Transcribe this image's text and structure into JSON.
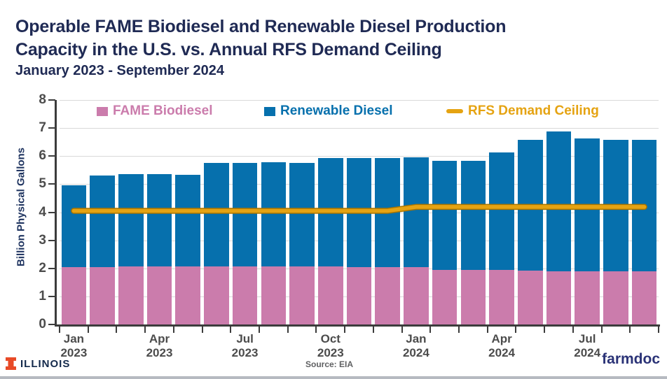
{
  "header": {
    "title_line1": "Operable FAME Biodiesel and Renewable Diesel Production",
    "title_line2": "Capacity in the U.S. vs. Annual RFS Demand Ceiling",
    "subtitle": "January 2023 - September 2024"
  },
  "chart_data": {
    "type": "bar",
    "stacked": true,
    "title": "Operable FAME Biodiesel and Renewable Diesel Production Capacity in the U.S. vs. Annual RFS Demand Ceiling",
    "subtitle": "January 2023 - September 2024",
    "ylabel": "Billion Physical Gallons",
    "xlabel": "",
    "ylim": [
      0,
      8
    ],
    "yticks": [
      0,
      1,
      2,
      3,
      4,
      5,
      6,
      7,
      8
    ],
    "grid": "horizontal",
    "legend_position": "top-inside",
    "categories": [
      "Jan 2023",
      "Feb 2023",
      "Mar 2023",
      "Apr 2023",
      "May 2023",
      "Jun 2023",
      "Jul 2023",
      "Aug 2023",
      "Sep 2023",
      "Oct 2023",
      "Nov 2023",
      "Dec 2023",
      "Jan 2024",
      "Feb 2024",
      "Mar 2024",
      "Apr 2024",
      "May 2024",
      "Jun 2024",
      "Jul 2024",
      "Aug 2024",
      "Sep 2024"
    ],
    "series": [
      {
        "name": "FAME Biodiesel",
        "type": "bar",
        "color": "#cb7cac",
        "values": [
          2.04,
          2.05,
          2.06,
          2.06,
          2.06,
          2.07,
          2.07,
          2.07,
          2.07,
          2.07,
          2.05,
          2.05,
          2.05,
          1.95,
          1.95,
          1.95,
          1.92,
          1.9,
          1.9,
          1.9,
          1.9
        ]
      },
      {
        "name": "Renewable Diesel",
        "type": "bar",
        "color": "#0670ad",
        "values": [
          2.93,
          3.26,
          3.31,
          3.31,
          3.27,
          3.7,
          3.7,
          3.71,
          3.69,
          3.87,
          3.88,
          3.88,
          3.9,
          3.89,
          3.88,
          4.17,
          4.67,
          4.99,
          4.72,
          4.69,
          4.67
        ]
      },
      {
        "name": "RFS Demand Ceiling",
        "type": "line",
        "color": "#e5a312",
        "values": [
          4.05,
          4.05,
          4.05,
          4.05,
          4.05,
          4.05,
          4.05,
          4.05,
          4.05,
          4.05,
          4.05,
          4.05,
          4.19,
          4.19,
          4.19,
          4.19,
          4.19,
          4.19,
          4.19,
          4.19,
          4.19
        ]
      }
    ],
    "x_axis_labels": [
      {
        "index": 0,
        "month": "Jan",
        "year": "2023"
      },
      {
        "index": 3,
        "month": "Apr",
        "year": "2023"
      },
      {
        "index": 6,
        "month": "Jul",
        "year": "2023"
      },
      {
        "index": 9,
        "month": "Oct",
        "year": "2023"
      },
      {
        "index": 12,
        "month": "Jan",
        "year": "2024"
      },
      {
        "index": 15,
        "month": "Apr",
        "year": "2024"
      },
      {
        "index": 18,
        "month": "Jul",
        "year": "2024"
      }
    ]
  },
  "colors": {
    "title_navy": "#1f2a54",
    "axis_text": "#4c4c4c",
    "gridline": "#d9d9d9",
    "axis_line": "#3c3c3c",
    "line_edge": "#a87400",
    "fame_pink": "#cb7cac",
    "diesel_blue": "#0670ad",
    "rfs_orange": "#e5a312",
    "illinois_orange": "#e84a27",
    "illinois_navy": "#13294b",
    "farmdoc_navy": "#2b3377",
    "bottom_band": "#b6bac1"
  },
  "footer": {
    "brand_left": "ILLINOIS",
    "source": "Source: EIA",
    "brand_right": "farmdoc"
  }
}
